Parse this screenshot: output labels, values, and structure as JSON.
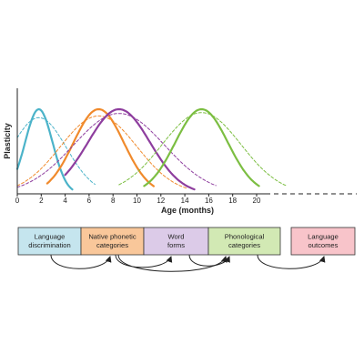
{
  "chart_data": {
    "type": "line",
    "xlabel": "Age (months)",
    "ylabel": "Plasticity",
    "xlim": [
      0,
      28
    ],
    "x_ticks": [
      0,
      2,
      4,
      6,
      8,
      10,
      12,
      14,
      16,
      18,
      20
    ],
    "x_tick_labels": [
      "0",
      "2",
      "4",
      "6",
      "8",
      "10",
      "12",
      "14",
      "16",
      "18",
      "20"
    ],
    "series": [
      {
        "color": "#4bb3c9",
        "style": "solid",
        "mean": 1.8,
        "sd": 1.15,
        "peak": 1.0,
        "x_range": [
          0,
          4.6
        ]
      },
      {
        "color": "#4bb3c9",
        "style": "dashed",
        "mean": 1.8,
        "sd": 2.3,
        "peak": 0.9,
        "x_range": [
          0,
          6.5
        ]
      },
      {
        "color": "#f08a2c",
        "style": "solid",
        "mean": 6.8,
        "sd": 2.1,
        "peak": 1.0,
        "x_range": [
          2.5,
          11.4
        ]
      },
      {
        "color": "#f08a2c",
        "style": "dashed",
        "mean": 6.8,
        "sd": 3.2,
        "peak": 0.92,
        "x_range": [
          0,
          14.2
        ]
      },
      {
        "color": "#8e3e9e",
        "style": "solid",
        "mean": 8.5,
        "sd": 2.6,
        "peak": 1.0,
        "x_range": [
          4.0,
          14.8
        ]
      },
      {
        "color": "#8e3e9e",
        "style": "dashed",
        "mean": 8.5,
        "sd": 3.8,
        "peak": 0.95,
        "x_range": [
          0,
          16.6
        ]
      },
      {
        "color": "#7cbe42",
        "style": "solid",
        "mean": 15.4,
        "sd": 2.2,
        "peak": 1.0,
        "x_range": [
          10.6,
          20.2
        ]
      },
      {
        "color": "#7cbe42",
        "style": "dashed",
        "mean": 15.4,
        "sd": 3.3,
        "peak": 0.96,
        "x_range": [
          8.5,
          22.5
        ]
      }
    ]
  },
  "stages": [
    {
      "lines": [
        "Language",
        "discrimination"
      ],
      "fill": "#c5e5ee"
    },
    {
      "lines": [
        "Native phonetic",
        "categories"
      ],
      "fill": "#f9c79a"
    },
    {
      "lines": [
        "Word",
        "forms"
      ],
      "fill": "#dccbe8"
    },
    {
      "lines": [
        "Phonological",
        "categories"
      ],
      "fill": "#d2e9b4"
    },
    {
      "lines": [
        "Language",
        "outcomes"
      ],
      "fill": "#f8c4ca"
    }
  ],
  "arrows": [
    {
      "from": 0,
      "to": 1
    },
    {
      "from": 1,
      "to": 2
    },
    {
      "from": 1,
      "to": 3
    },
    {
      "from": 2,
      "to": 3
    },
    {
      "from": 3,
      "to": 4
    }
  ]
}
